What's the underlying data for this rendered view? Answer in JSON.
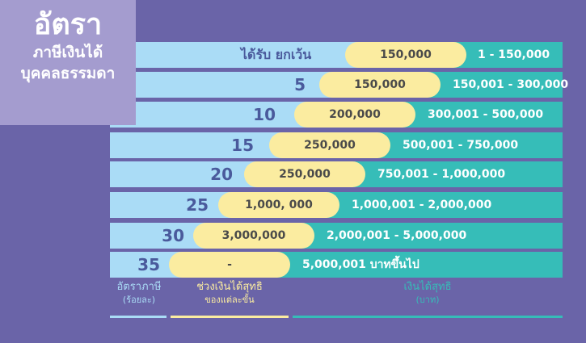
{
  "title": {
    "main": "อัตรา",
    "line1": "ภาษีเงินได้",
    "line2": "บุคคลธรรมดา"
  },
  "exempt_label": "ได้รับ ยกเว้น",
  "rows": [
    {
      "rate": "",
      "amount": "150,000",
      "range": "1 - 150,000"
    },
    {
      "rate": "5",
      "amount": "150,000",
      "range": "150,001 - 300,000"
    },
    {
      "rate": "10",
      "amount": "200,000",
      "range": "300,001 - 500,000"
    },
    {
      "rate": "15",
      "amount": "250,000",
      "range": "500,001 - 750,000"
    },
    {
      "rate": "20",
      "amount": "250,000",
      "range": "750,001 - 1,000,000"
    },
    {
      "rate": "25",
      "amount": "1,000, 000",
      "range": "1,000,001 - 2,000,000"
    },
    {
      "rate": "30",
      "amount": "3,000,000",
      "range": "2,000,001 - 5,000,000"
    },
    {
      "rate": "35",
      "amount": "-",
      "range": "5,000,001 บาทขึ้นไป"
    }
  ],
  "footer": {
    "rate_label": "อัตราภาษี",
    "rate_unit": "(ร้อยละ)",
    "bracket_label": "ช่วงเงินได้สุทธิ",
    "bracket_sub": "ของแต่ละขั้น",
    "income_label": "เงินได้สุทธิ",
    "income_unit": "(บาท)"
  },
  "colors": {
    "background": "#6a64a8",
    "title_box": "#a49ccf",
    "light_blue": "#aadcf6",
    "teal": "#36bdb8",
    "yellow": "#fbeca0",
    "rate_text": "#4a5a9c"
  }
}
